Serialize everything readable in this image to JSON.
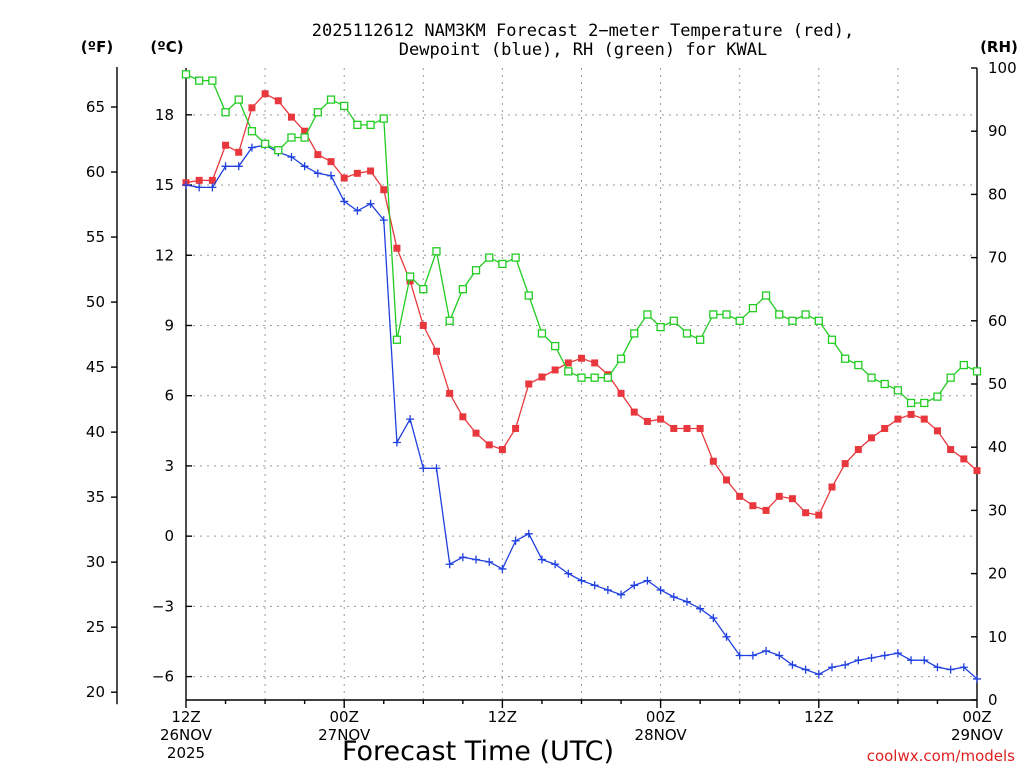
{
  "title_line1": "2025112612 NAM3KM Forecast 2−meter Temperature (red),",
  "title_line2": "Dewpoint (blue), RH (green) for KWAL",
  "unit_f": "(ºF)",
  "unit_c": "(ºC)",
  "unit_rh": "(RH)",
  "credit": "coolwx.com/models",
  "colors": {
    "temp": "#e8383d",
    "dewpoint": "#2040e0",
    "rh": "#22cc22"
  },
  "chart_data": {
    "type": "line",
    "title": "2025112612 NAM3KM Forecast 2−meter Temperature (red), Dewpoint (blue), RH (green) for KWAL",
    "xlabel": "Forecast Time (UTC)",
    "x_unit": "forecast hour",
    "x_range": [
      0,
      60
    ],
    "x_step": 1,
    "x_ticks": [
      {
        "hour": 0,
        "line1": "12Z",
        "line2": "26NOV",
        "line3": "2025"
      },
      {
        "hour": 12,
        "line1": "00Z",
        "line2": "27NOV",
        "line3": ""
      },
      {
        "hour": 24,
        "line1": "12Z",
        "line2": "",
        "line3": ""
      },
      {
        "hour": 36,
        "line1": "00Z",
        "line2": "28NOV",
        "line3": ""
      },
      {
        "hour": 48,
        "line1": "12Z",
        "line2": "",
        "line3": ""
      },
      {
        "hour": 60,
        "line1": "00Z",
        "line2": "29NOV",
        "line3": ""
      }
    ],
    "left_axis_celsius": {
      "label": "(ºC)",
      "range": [
        -7,
        20
      ],
      "ticks": [
        18,
        15,
        12,
        9,
        6,
        3,
        0,
        -3,
        -6
      ]
    },
    "left_axis_fahrenheit": {
      "label": "(ºF)",
      "ticks": [
        65,
        60,
        55,
        50,
        45,
        40,
        35,
        30,
        25,
        20
      ]
    },
    "right_axis_rh": {
      "label": "(RH)",
      "range": [
        0,
        100
      ],
      "ticks": [
        100,
        90,
        80,
        70,
        60,
        50,
        40,
        30,
        20,
        10,
        0
      ]
    },
    "series": [
      {
        "name": "2-meter Temperature",
        "color": "red",
        "axis": "celsius",
        "marker": "filled-square",
        "values": [
          15.1,
          15.2,
          15.2,
          16.7,
          16.4,
          18.3,
          18.9,
          18.6,
          17.9,
          17.3,
          16.3,
          16.0,
          15.3,
          15.5,
          15.6,
          14.8,
          12.3,
          10.9,
          9.0,
          7.9,
          6.1,
          5.1,
          4.4,
          3.9,
          3.7,
          4.6,
          6.5,
          6.8,
          7.1,
          7.4,
          7.6,
          7.4,
          6.9,
          6.1,
          5.3,
          4.9,
          5.0,
          4.6,
          4.6,
          4.6,
          3.2,
          2.4,
          1.7,
          1.3,
          1.1,
          1.7,
          1.6,
          1.0,
          0.9,
          2.1,
          3.1,
          3.7,
          4.2,
          4.6,
          5.0,
          5.2,
          5.0,
          4.5,
          3.7,
          3.3,
          2.8
        ]
      },
      {
        "name": "Dewpoint",
        "color": "blue",
        "axis": "celsius",
        "marker": "plus",
        "values": [
          15.0,
          14.9,
          14.9,
          15.8,
          15.8,
          16.6,
          16.7,
          16.4,
          16.2,
          15.8,
          15.5,
          15.4,
          14.3,
          13.9,
          14.2,
          13.5,
          4.0,
          5.0,
          2.9,
          2.9,
          -1.2,
          -0.9,
          -1.0,
          -1.1,
          -1.4,
          -0.2,
          0.1,
          -1.0,
          -1.2,
          -1.6,
          -1.9,
          -2.1,
          -2.3,
          -2.5,
          -2.1,
          -1.9,
          -2.3,
          -2.6,
          -2.8,
          -3.1,
          -3.5,
          -4.3,
          -5.1,
          -5.1,
          -4.9,
          -5.1,
          -5.5,
          -5.7,
          -5.9,
          -5.6,
          -5.5,
          -5.3,
          -5.2,
          -5.1,
          -5.0,
          -5.3,
          -5.3,
          -5.6,
          -5.7,
          -5.6,
          -6.1
        ]
      },
      {
        "name": "RH",
        "color": "green",
        "axis": "rh",
        "marker": "open-square",
        "values": [
          99,
          98,
          98,
          93,
          95,
          90,
          88,
          87,
          89,
          89,
          93,
          95,
          94,
          91,
          91,
          92,
          57,
          67,
          65,
          71,
          60,
          65,
          68,
          70,
          69,
          70,
          64,
          58,
          56,
          52,
          51,
          51,
          51,
          54,
          58,
          61,
          59,
          60,
          58,
          57,
          61,
          61,
          60,
          62,
          64,
          61,
          60,
          61,
          60,
          57,
          54,
          53,
          51,
          50,
          49,
          47,
          47,
          48,
          51,
          53,
          52
        ]
      }
    ]
  }
}
